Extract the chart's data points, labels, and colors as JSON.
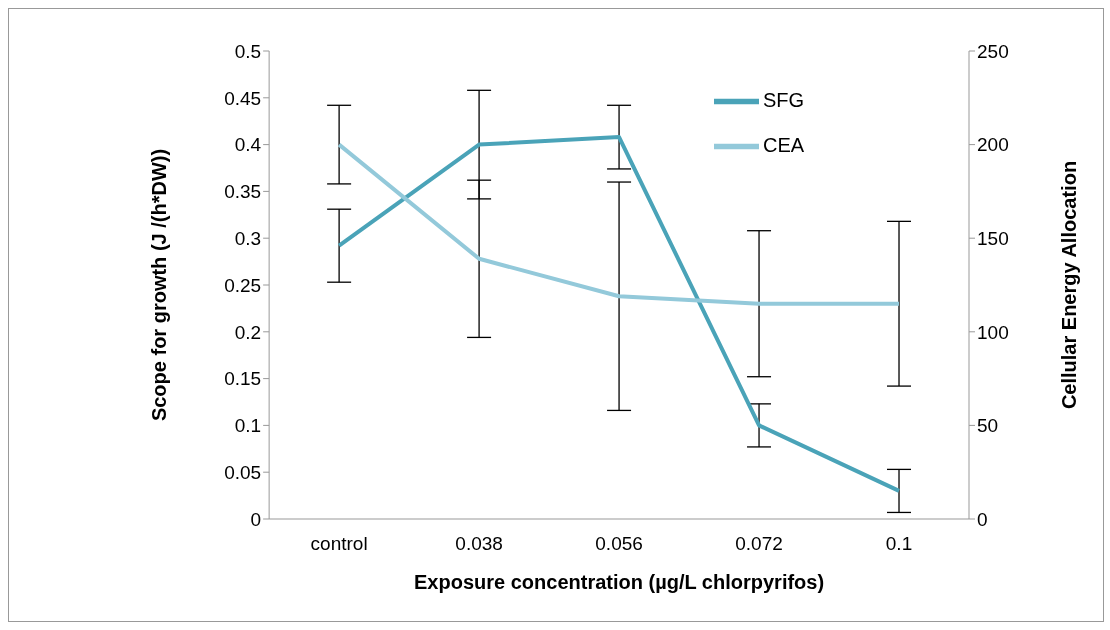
{
  "chart_data": {
    "type": "line",
    "xlabel": "Exposure concentration (µg/L chlorpyrifos)",
    "ylabel": "Scope for growth (J /(h*DW))",
    "y2label": "Cellular Energy Allocation",
    "categories": [
      "control",
      "0.038",
      "0.056",
      "0.072",
      "0.1"
    ],
    "series": [
      {
        "name": "SFG",
        "color": "#4aa3b8",
        "values": [
          0.292,
          0.4,
          0.408,
          0.1,
          0.03
        ],
        "errors": [
          0.039,
          0.058,
          0.034,
          0.023,
          0.023
        ]
      },
      {
        "name": "CEA",
        "color": "#93c9da",
        "axis": "y2",
        "values": [
          200,
          139,
          119,
          115,
          115
        ],
        "errors": [
          21,
          42,
          61,
          39,
          44
        ]
      }
    ],
    "ylim": [
      0,
      0.5
    ],
    "yticks": [
      0,
      0.05,
      0.1,
      0.15,
      0.2,
      0.25,
      0.3,
      0.35,
      0.4,
      0.45,
      0.5
    ],
    "y2lim": [
      0,
      250
    ],
    "y2ticks": [
      0,
      50,
      100,
      150,
      200,
      250
    ],
    "legend": "top right",
    "marker": "none",
    "line_style": "solid",
    "grid": false
  }
}
